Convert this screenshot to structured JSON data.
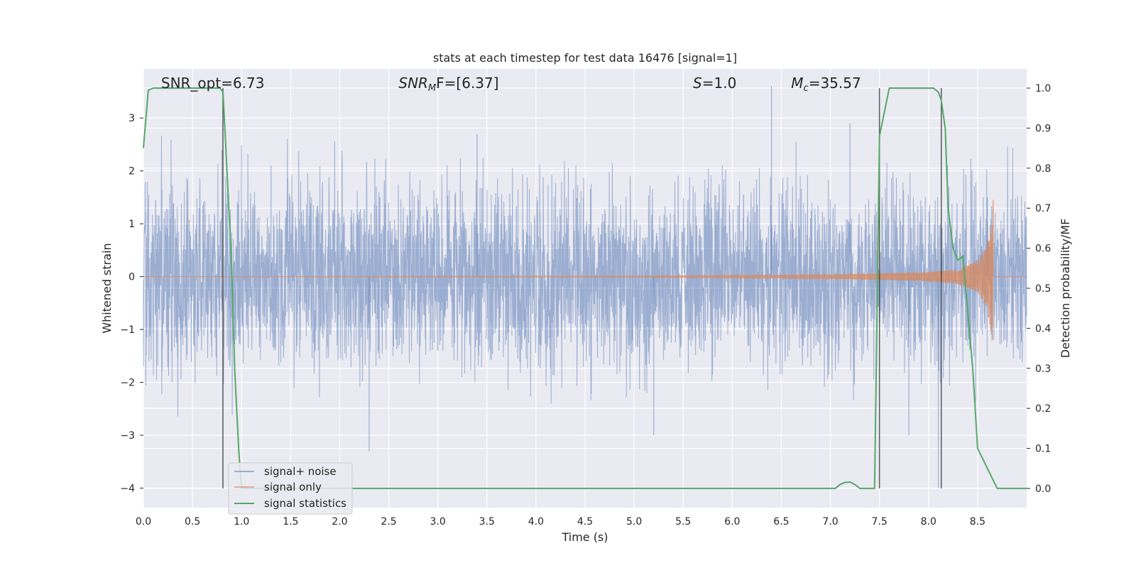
{
  "chart_data": {
    "type": "line",
    "title": "stats at each timestep for test data 16476 [signal=1]",
    "xlabel": "Time (s)",
    "ylabel": "Whitened strain",
    "y2label": "Detection probability/MF",
    "xlim": [
      0.0,
      9.0
    ],
    "ylim": [
      -4.37,
      3.93
    ],
    "y2lim": [
      -0.048,
      1.048
    ],
    "xticks": [
      "0.0",
      "0.5",
      "1.0",
      "1.5",
      "2.0",
      "2.5",
      "3.0",
      "3.5",
      "4.0",
      "4.5",
      "5.0",
      "5.5",
      "6.0",
      "6.5",
      "7.0",
      "7.5",
      "8.0",
      "8.5"
    ],
    "yticks": [
      "−4",
      "−3",
      "−2",
      "−1",
      "0",
      "1",
      "2",
      "3"
    ],
    "y2ticks": [
      "0.0",
      "0.1",
      "0.2",
      "0.3",
      "0.4",
      "0.5",
      "0.6",
      "0.7",
      "0.8",
      "0.9",
      "1.0"
    ],
    "grid": true,
    "legend_position": "lower-left",
    "annotations": [
      {
        "prefix": "SNR_opt=6.73",
        "var": "",
        "sub": "",
        "rest": "",
        "x_data": 0.18
      },
      {
        "prefix": "",
        "var": "SNR",
        "sub": "M",
        "rest": "F=[6.37]",
        "x_data": 2.6
      },
      {
        "prefix": "",
        "var": "S",
        "sub": "",
        "rest": "=1.0",
        "x_data": 5.6
      },
      {
        "prefix": "",
        "var": "M",
        "sub": "c",
        "rest": "=35.57",
        "x_data": 6.6
      }
    ],
    "vlines_x": [
      0.81,
      7.5,
      8.13
    ],
    "series": [
      {
        "name": "signal+ noise",
        "color": "#4c72b0",
        "note": "dense whitened noise, typical amplitude about ±1.5 with spikes to about ±3",
        "amplitude_envelope": 1.4,
        "peaks": [
          [
            0.8,
            2.4
          ],
          [
            1.3,
            2.1
          ],
          [
            2.3,
            -3.3
          ],
          [
            3.4,
            2.7
          ],
          [
            5.2,
            -3.0
          ],
          [
            6.4,
            3.6
          ],
          [
            7.2,
            2.9
          ],
          [
            7.8,
            -3.0
          ],
          [
            8.1,
            -4.0
          ],
          [
            8.6,
            1.5
          ]
        ]
      },
      {
        "name": "signal only",
        "color": "#dd8452",
        "note": "chirp waveform growing in amplitude toward merger near t=8.66 s",
        "x": [
          0.0,
          5.0,
          6.0,
          7.0,
          7.5,
          8.0,
          8.3,
          8.5,
          8.6,
          8.66,
          8.7,
          9.0
        ],
        "envelope": [
          0.0,
          0.01,
          0.02,
          0.04,
          0.06,
          0.09,
          0.14,
          0.3,
          0.6,
          1.5,
          0.0,
          0.0
        ]
      },
      {
        "name": "signal statistics",
        "color": "#55a868",
        "axis": "right",
        "x": [
          0.0,
          0.05,
          0.1,
          0.2,
          0.3,
          0.4,
          0.5,
          0.6,
          0.7,
          0.78,
          0.81,
          0.83,
          0.86,
          0.9,
          0.93,
          0.97,
          1.0,
          1.5,
          2.0,
          3.0,
          4.0,
          5.0,
          6.0,
          6.5,
          7.0,
          7.05,
          7.1,
          7.15,
          7.2,
          7.25,
          7.3,
          7.4,
          7.45,
          7.5,
          7.6,
          7.7,
          7.8,
          7.9,
          8.0,
          8.05,
          8.1,
          8.13,
          8.17,
          8.2,
          8.25,
          8.3,
          8.35,
          8.45,
          8.5,
          8.6,
          8.7,
          8.8,
          9.0
        ],
        "y": [
          0.85,
          0.995,
          1.0,
          1.0,
          1.0,
          1.0,
          1.0,
          1.0,
          1.0,
          1.0,
          0.99,
          0.9,
          0.75,
          0.55,
          0.3,
          0.1,
          0.0,
          0.0,
          0.0,
          0.0,
          0.0,
          0.0,
          0.0,
          0.0,
          0.0,
          0.0,
          0.01,
          0.015,
          0.016,
          0.01,
          0.0,
          0.0,
          0.0,
          0.88,
          1.0,
          1.0,
          1.0,
          1.0,
          1.0,
          1.0,
          0.99,
          0.97,
          0.9,
          0.7,
          0.6,
          0.57,
          0.58,
          0.3,
          0.1,
          0.05,
          0.0,
          0.0,
          0.0
        ]
      }
    ]
  }
}
